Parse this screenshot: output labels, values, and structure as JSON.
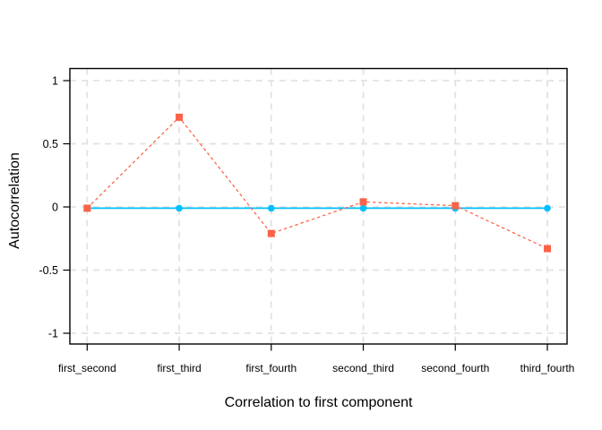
{
  "chart_data": {
    "type": "line",
    "title": "",
    "xlabel": "Correlation to first component",
    "ylabel": "Autocorrelation",
    "categories": [
      "first_second",
      "first_third",
      "first_fourth",
      "second_third",
      "second_fourth",
      "third_fourth"
    ],
    "y_ticks": [
      1,
      0.5,
      0,
      -0.5,
      -1
    ],
    "y_tick_labels": [
      "1",
      "0.5",
      "0",
      "-0.5",
      "-1"
    ],
    "ylim": [
      -1.09,
      1.09
    ],
    "grid": "dashed",
    "legend_position": "none",
    "series": [
      {
        "name": "blue-series",
        "color": "#00BFFF",
        "line_style": "solid",
        "marker": "circle",
        "values": [
          -0.01,
          -0.01,
          -0.01,
          -0.01,
          -0.01,
          -0.01
        ]
      },
      {
        "name": "red-series",
        "color": "#FB6347",
        "line_style": "dashed",
        "marker": "square",
        "values": [
          -0.01,
          0.71,
          -0.21,
          0.04,
          0.01,
          -0.33
        ]
      }
    ],
    "colors": {
      "panel_border": "#000000",
      "grid": "#E2E2E2",
      "tick": "#000000",
      "text": "#000000",
      "background": "#FFFFFF"
    }
  }
}
